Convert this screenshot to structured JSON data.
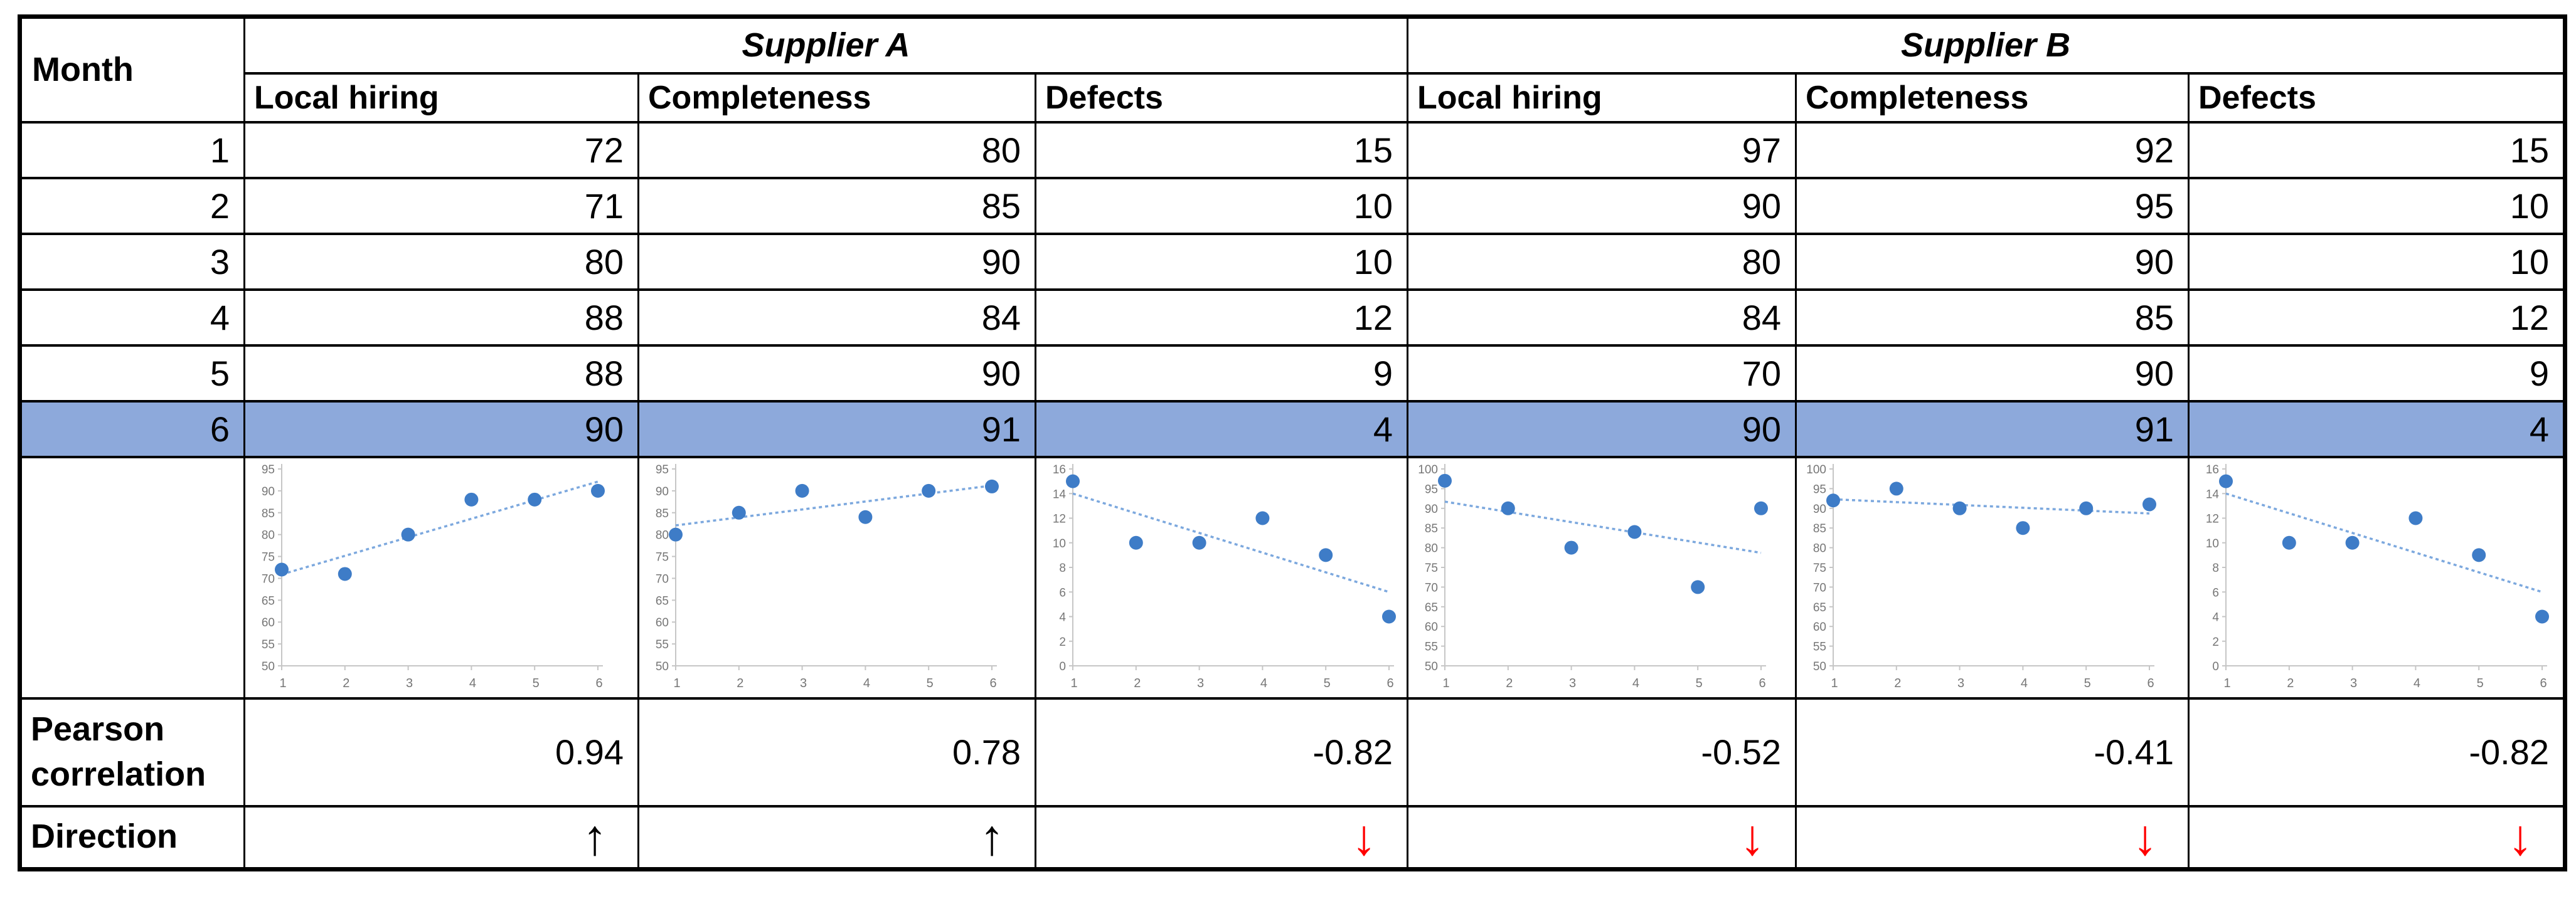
{
  "header": {
    "month": "Month",
    "supplier_a": "Supplier A",
    "supplier_b": "Supplier B",
    "metrics": [
      "Local hiring",
      "Completeness",
      "Defects",
      "Local hiring",
      "Completeness",
      "Defects"
    ]
  },
  "rows": [
    {
      "month": "1",
      "values": [
        "72",
        "80",
        "15",
        "97",
        "92",
        "15"
      ],
      "highlight": false
    },
    {
      "month": "2",
      "values": [
        "71",
        "85",
        "10",
        "90",
        "95",
        "10"
      ],
      "highlight": false
    },
    {
      "month": "3",
      "values": [
        "80",
        "90",
        "10",
        "80",
        "90",
        "10"
      ],
      "highlight": false
    },
    {
      "month": "4",
      "values": [
        "88",
        "84",
        "12",
        "84",
        "85",
        "12"
      ],
      "highlight": false
    },
    {
      "month": "5",
      "values": [
        "88",
        "90",
        "9",
        "70",
        "90",
        "9"
      ],
      "highlight": false
    },
    {
      "month": "6",
      "values": [
        "90",
        "91",
        "4",
        "90",
        "91",
        "4"
      ],
      "highlight": true
    }
  ],
  "pearson": {
    "label_line1": "Pearson",
    "label_line2": "correlation",
    "values": [
      "0.94",
      "0.78",
      "-0.82",
      "-0.52",
      "-0.41",
      "-0.82"
    ]
  },
  "direction": {
    "label": "Direction",
    "arrows": [
      {
        "glyph": "↑",
        "name": "up-arrow",
        "color": "#000000"
      },
      {
        "glyph": "↑",
        "name": "up-arrow",
        "color": "#000000"
      },
      {
        "glyph": "↓",
        "name": "down-arrow",
        "color": "#FF0000"
      },
      {
        "glyph": "↓",
        "name": "down-arrow",
        "color": "#FF0000"
      },
      {
        "glyph": "↓",
        "name": "down-arrow",
        "color": "#FF0000"
      },
      {
        "glyph": "↓",
        "name": "down-arrow",
        "color": "#FF0000"
      }
    ]
  },
  "colors": {
    "highlight_row": "#8DA9DB",
    "marker": "#3E7CC7",
    "trend": "#7CA8DE",
    "axis": "#C6C6C6",
    "tick_label": "#767676",
    "up_arrow": "#000000",
    "down_arrow": "#FF0000",
    "border": "#000000"
  },
  "chart_data": [
    {
      "type": "scatter",
      "label": "Supplier A Local hiring",
      "x": [
        1,
        2,
        3,
        4,
        5,
        6
      ],
      "y": [
        72,
        71,
        80,
        88,
        88,
        90
      ],
      "ylim": [
        50,
        95
      ],
      "ytick_step": 5,
      "xticks": [
        1,
        2,
        3,
        4,
        5,
        6
      ],
      "trend": [
        70.9,
        92.1
      ],
      "grid": false,
      "legend": false,
      "trendline": "linear-dotted"
    },
    {
      "type": "scatter",
      "label": "Supplier A Completeness",
      "x": [
        1,
        2,
        3,
        4,
        5,
        6
      ],
      "y": [
        80,
        85,
        90,
        84,
        90,
        91
      ],
      "ylim": [
        50,
        95
      ],
      "ytick_step": 5,
      "xticks": [
        1,
        2,
        3,
        4,
        5,
        6
      ],
      "trend": [
        82.1,
        91.2
      ],
      "grid": false,
      "legend": false,
      "trendline": "linear-dotted"
    },
    {
      "type": "scatter",
      "label": "Supplier A Defects",
      "x": [
        1,
        2,
        3,
        4,
        5,
        6
      ],
      "y": [
        15,
        10,
        10,
        12,
        9,
        4
      ],
      "ylim": [
        0,
        16
      ],
      "ytick_step": 2,
      "xticks": [
        1,
        2,
        3,
        4,
        5,
        6
      ],
      "trend": [
        14.0,
        6.0
      ],
      "grid": false,
      "legend": false,
      "trendline": "linear-dotted"
    },
    {
      "type": "scatter",
      "label": "Supplier B Local hiring",
      "x": [
        1,
        2,
        3,
        4,
        5,
        6
      ],
      "y": [
        97,
        90,
        80,
        84,
        70,
        90
      ],
      "ylim": [
        50,
        100
      ],
      "ytick_step": 5,
      "xticks": [
        1,
        2,
        3,
        4,
        5,
        6
      ],
      "trend": [
        91.7,
        78.7
      ],
      "grid": false,
      "legend": false,
      "trendline": "linear-dotted"
    },
    {
      "type": "scatter",
      "label": "Supplier B Completeness",
      "x": [
        1,
        2,
        3,
        4,
        5,
        6
      ],
      "y": [
        92,
        95,
        90,
        85,
        90,
        91
      ],
      "ylim": [
        50,
        100
      ],
      "ytick_step": 5,
      "xticks": [
        1,
        2,
        3,
        4,
        5,
        6
      ],
      "trend": [
        92.3,
        88.7
      ],
      "grid": false,
      "legend": false,
      "trendline": "linear-dotted"
    },
    {
      "type": "scatter",
      "label": "Supplier B Defects",
      "x": [
        1,
        2,
        3,
        4,
        5,
        6
      ],
      "y": [
        15,
        10,
        10,
        12,
        9,
        4
      ],
      "ylim": [
        0,
        16
      ],
      "ytick_step": 2,
      "xticks": [
        1,
        2,
        3,
        4,
        5,
        6
      ],
      "trend": [
        14.0,
        6.0
      ],
      "grid": false,
      "legend": false,
      "trendline": "linear-dotted"
    }
  ]
}
